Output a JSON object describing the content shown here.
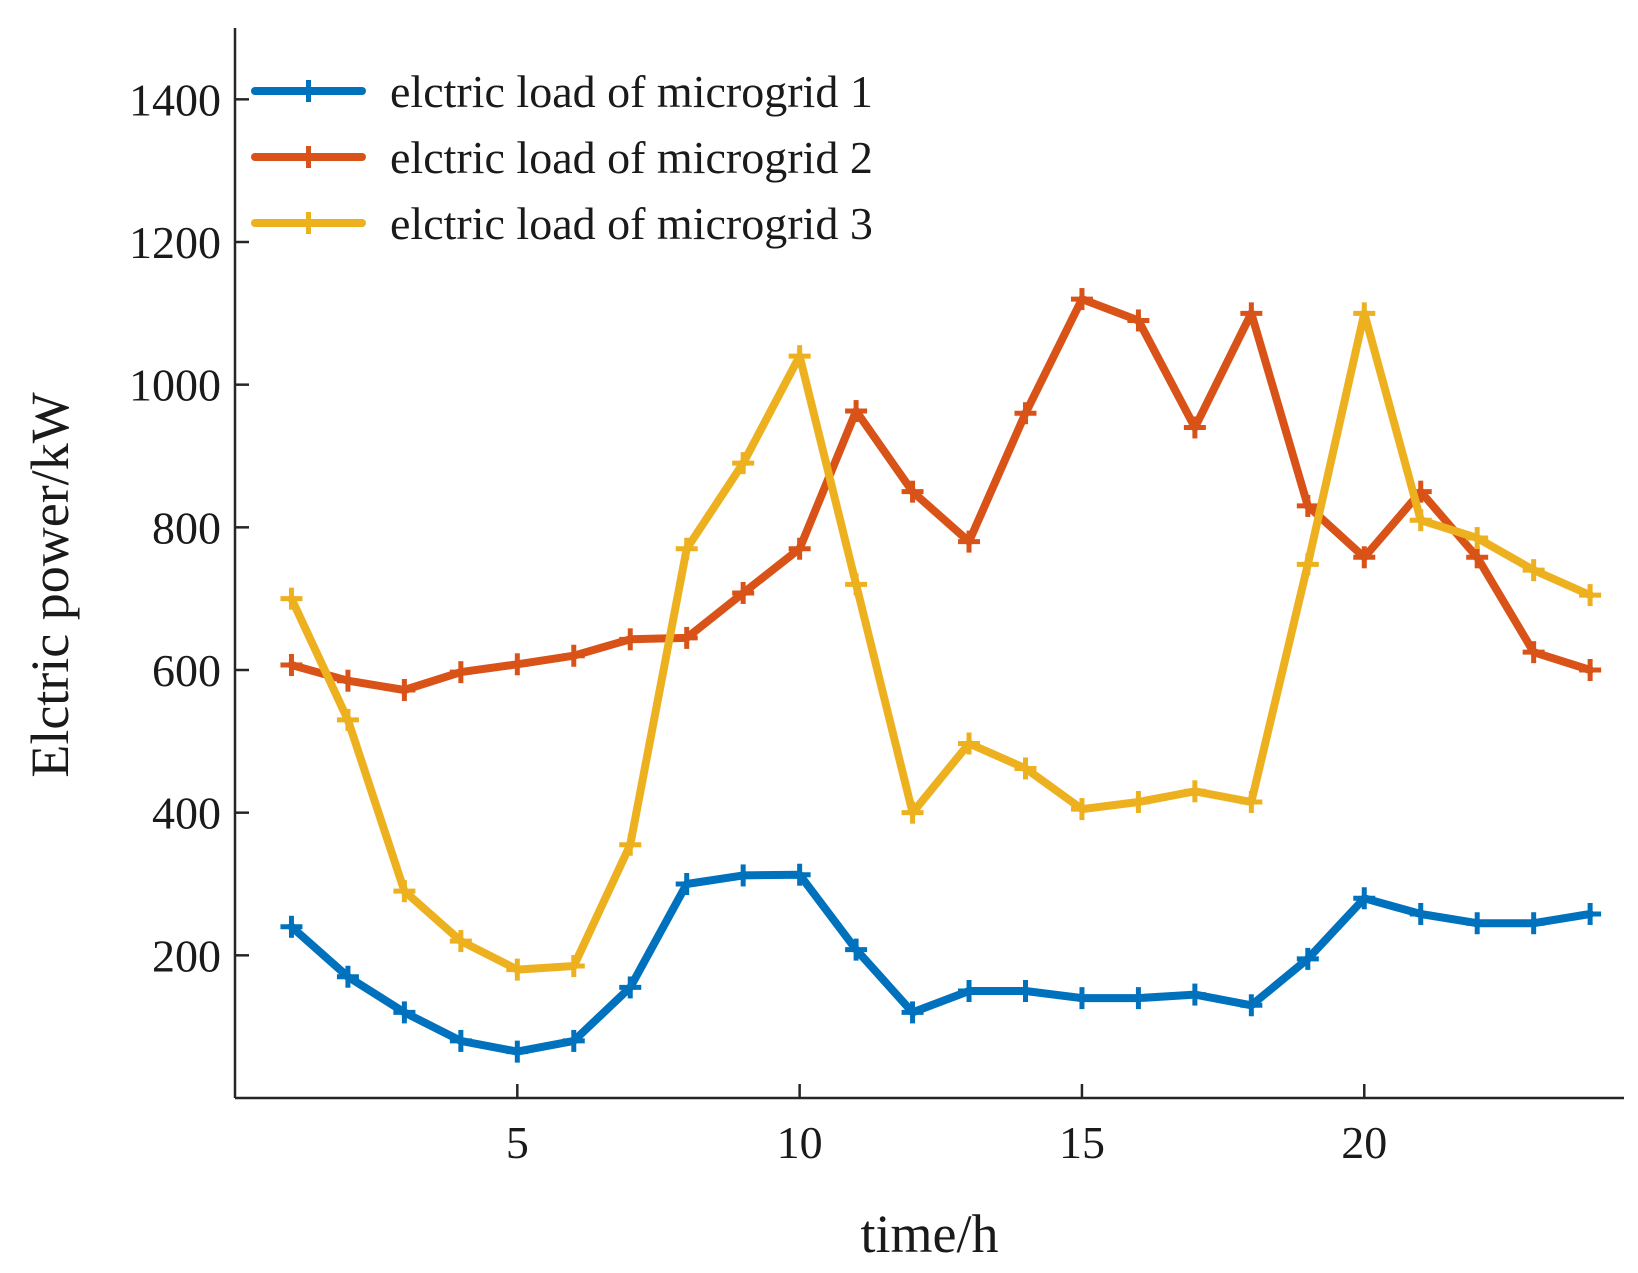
{
  "chart_data": {
    "type": "line",
    "title": "",
    "xlabel": "time/h",
    "ylabel": "Elctric power/kW",
    "xlim": [
      0,
      24.6
    ],
    "ylim": [
      0,
      1500
    ],
    "xticks": [
      5,
      10,
      15,
      20
    ],
    "yticks": [
      200,
      400,
      600,
      800,
      1000,
      1200,
      1400
    ],
    "grid": false,
    "legend_position": "top-left",
    "x": [
      1,
      2,
      3,
      4,
      5,
      6,
      7,
      8,
      9,
      10,
      11,
      12,
      13,
      14,
      15,
      16,
      17,
      18,
      19,
      20,
      21,
      22,
      23,
      24
    ],
    "series": [
      {
        "name": "elctric load of microgrid 1",
        "color": "#0072BD",
        "values": [
          240,
          170,
          120,
          80,
          65,
          80,
          155,
          300,
          312,
          313,
          208,
          120,
          150,
          150,
          140,
          140,
          145,
          130,
          195,
          280,
          258,
          245,
          245,
          258
        ]
      },
      {
        "name": "elctric load of microgrid 2",
        "color": "#D95319",
        "values": [
          607,
          585,
          572,
          597,
          608,
          620,
          643,
          645,
          708,
          770,
          963,
          850,
          780,
          960,
          1120,
          1090,
          940,
          1100,
          830,
          758,
          850,
          758,
          625,
          600
        ]
      },
      {
        "name": "elctric load of microgrid 3",
        "color": "#EDB120",
        "values": [
          700,
          530,
          290,
          220,
          180,
          185,
          355,
          770,
          890,
          1040,
          720,
          400,
          497,
          462,
          405,
          415,
          430,
          415,
          748,
          1100,
          810,
          785,
          740,
          705
        ]
      }
    ]
  }
}
